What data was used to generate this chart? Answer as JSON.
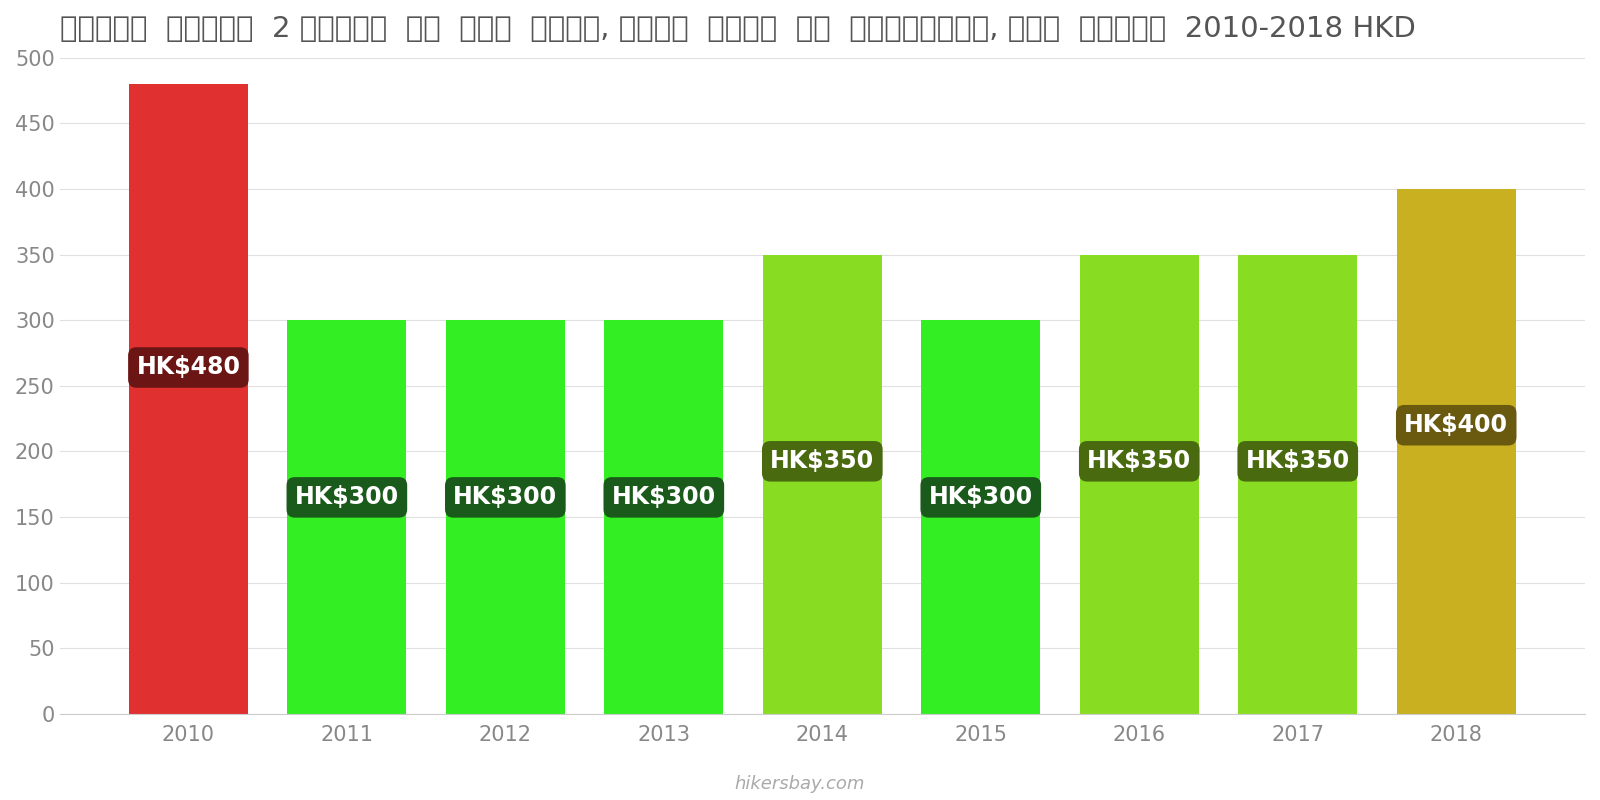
{
  "years": [
    2010,
    2011,
    2012,
    2013,
    2014,
    2015,
    2016,
    2017,
    2018
  ],
  "values": [
    480,
    300,
    300,
    300,
    350,
    300,
    350,
    350,
    400
  ],
  "bar_colors": [
    "#e03030",
    "#33ee22",
    "#33ee22",
    "#33ee22",
    "#88dd22",
    "#33ee22",
    "#88dd22",
    "#88dd22",
    "#c8b020"
  ],
  "label_bg_colors": [
    "#6b1515",
    "#1a5a1a",
    "#1a5a1a",
    "#1a5a1a",
    "#4a6a10",
    "#1a5a1a",
    "#4a6a10",
    "#4a6a10",
    "#6a5a10"
  ],
  "labels": [
    "HK$480",
    "HK$300",
    "HK$300",
    "HK$300",
    "HK$350",
    "HK$300",
    "HK$350",
    "HK$350",
    "HK$400"
  ],
  "title": "हॉन्ग  कॉन्ग  2 लोगों  के  लिए  भोजन, मध्य  दूरी  के  रेस्तरां, तीन  कोर्स  2010-2018 HKD",
  "ylim": [
    0,
    500
  ],
  "yticks": [
    0,
    50,
    100,
    150,
    200,
    250,
    300,
    350,
    400,
    450,
    500
  ],
  "background_color": "#ffffff",
  "watermark": "hikersbay.com",
  "label_fontsize": 17,
  "title_fontsize": 21,
  "tick_fontsize": 15
}
